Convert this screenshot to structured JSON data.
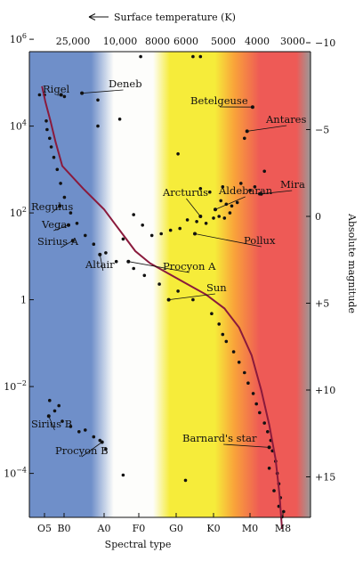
{
  "chart_data": {
    "type": "scatter",
    "title": "",
    "top_axis_label": "Surface temperature (K)",
    "top_ticks": [
      "25,000",
      "10,000",
      "8000",
      "6000",
      "5000",
      "4000",
      "3000"
    ],
    "xlabel": "Spectral type",
    "x_categories": [
      "O5",
      "B0",
      "A0",
      "F0",
      "G0",
      "K0",
      "M0",
      "M8"
    ],
    "left_ticks": [
      {
        "base": "10",
        "exp": "6",
        "value": 1000000
      },
      {
        "base": "10",
        "exp": "4",
        "value": 10000
      },
      {
        "base": "10",
        "exp": "2",
        "value": 100
      },
      {
        "base": "1",
        "exp": "",
        "value": 1
      },
      {
        "base": "10",
        "exp": "−2",
        "value": 0.01
      },
      {
        "base": "10",
        "exp": "−4",
        "value": 0.0001
      }
    ],
    "right_ylabel": "Absolute magnitude",
    "right_ticks": [
      "−10",
      "−5",
      "0",
      "+5",
      "+10",
      "+15"
    ],
    "right_ylim": [
      -11,
      18.5
    ],
    "main_sequence_curve": [
      [
        -0.2,
        -7.5
      ],
      [
        0,
        -6.6
      ],
      [
        0.3,
        -5.5
      ],
      [
        0.6,
        -4.3
      ],
      [
        1,
        -2.9
      ],
      [
        1.5,
        -1.6
      ],
      [
        2,
        -0.4
      ],
      [
        2.3,
        0.4
      ],
      [
        2.6,
        1.2
      ],
      [
        2.9,
        2
      ],
      [
        3.3,
        2.7
      ],
      [
        3.8,
        3.3
      ],
      [
        4.3,
        3.9
      ],
      [
        4.8,
        4.5
      ],
      [
        5.3,
        5.3
      ],
      [
        5.7,
        6.4
      ],
      [
        6.05,
        8
      ],
      [
        6.35,
        10
      ],
      [
        6.6,
        12
      ],
      [
        6.8,
        14
      ],
      [
        6.92,
        16
      ],
      [
        7,
        18
      ]
    ],
    "stars": [
      {
        "name": "Rigel",
        "x": 0.93,
        "y": -7.0
      },
      {
        "name": "Deneb",
        "x": 1.47,
        "y": -7.1
      },
      {
        "name": "Betelgeuse",
        "x": 6.08,
        "y": -6.3
      },
      {
        "name": "Antares",
        "x": 5.92,
        "y": -4.9
      },
      {
        "name": "Regulus",
        "x": 0.85,
        "y": -0.6
      },
      {
        "name": "Vega",
        "x": 1.15,
        "y": 0.5
      },
      {
        "name": "Sirius A",
        "x": 1.25,
        "y": 1.4
      },
      {
        "name": "Altair",
        "x": 1.9,
        "y": 2.2
      },
      {
        "name": "Procyon A",
        "x": 2.7,
        "y": 2.6
      },
      {
        "name": "Sun",
        "x": 3.8,
        "y": 4.8
      },
      {
        "name": "Arcturus",
        "x": 4.65,
        "y": 0.0
      },
      {
        "name": "Aldebaran",
        "x": 5.05,
        "y": -0.4
      },
      {
        "name": "Pollux",
        "x": 4.5,
        "y": 1.0
      },
      {
        "name": "Mira",
        "x": 6.35,
        "y": -1.3
      },
      {
        "name": "Sirius B",
        "x": 0.2,
        "y": 11.5
      },
      {
        "name": "Procyon B",
        "x": 1.95,
        "y": 13.0
      },
      {
        "name": "Barnard's star",
        "x": 6.6,
        "y": 13.3
      }
    ],
    "points": [
      [
        -0.35,
        -7.0
      ],
      [
        -0.05,
        -7.0
      ],
      [
        1.05,
        -6.9
      ],
      [
        1.85,
        -6.7
      ],
      [
        2.45,
        -5.6
      ],
      [
        1.85,
        -5.2
      ],
      [
        3.05,
        -9.2
      ],
      [
        4.65,
        -9.2
      ],
      [
        4.45,
        -9.2
      ],
      [
        4.05,
        -3.6
      ],
      [
        5.85,
        -4.5
      ],
      [
        6.45,
        -2.6
      ],
      [
        5.75,
        -1.9
      ],
      [
        6.0,
        -1.5
      ],
      [
        5.25,
        -1.7
      ],
      [
        4.65,
        -1.6
      ],
      [
        4.9,
        -1.4
      ],
      [
        5.2,
        -0.9
      ],
      [
        5.35,
        -0.7
      ],
      [
        5.5,
        -0.6
      ],
      [
        5.65,
        -0.8
      ],
      [
        5.45,
        -0.2
      ],
      [
        5.3,
        0.1
      ],
      [
        5.15,
        0.0
      ],
      [
        5.0,
        0.1
      ],
      [
        4.8,
        0.4
      ],
      [
        4.55,
        0.3
      ],
      [
        4.3,
        0.2
      ],
      [
        4.1,
        0.7
      ],
      [
        3.85,
        0.8
      ],
      [
        3.6,
        1.0
      ],
      [
        3.35,
        1.1
      ],
      [
        3.1,
        0.5
      ],
      [
        2.55,
        1.3
      ],
      [
        2.85,
        -0.1
      ],
      [
        6.15,
        -1.7
      ],
      [
        6.3,
        -1.3
      ],
      [
        0.05,
        -5.5
      ],
      [
        0.1,
        -5.0
      ],
      [
        0.25,
        -4.5
      ],
      [
        0.35,
        -4.0
      ],
      [
        0.5,
        -3.4
      ],
      [
        0.7,
        -2.7
      ],
      [
        0.9,
        -1.9
      ],
      [
        1.05,
        -1.1
      ],
      [
        1.2,
        -0.2
      ],
      [
        1.35,
        0.4
      ],
      [
        1.55,
        1.1
      ],
      [
        1.75,
        1.6
      ],
      [
        2.05,
        2.1
      ],
      [
        2.35,
        2.6
      ],
      [
        2.85,
        3.0
      ],
      [
        3.15,
        3.4
      ],
      [
        3.55,
        3.9
      ],
      [
        4.05,
        4.3
      ],
      [
        4.45,
        4.8
      ],
      [
        4.95,
        5.6
      ],
      [
        5.15,
        6.2
      ],
      [
        5.25,
        6.8
      ],
      [
        5.35,
        7.2
      ],
      [
        5.55,
        7.8
      ],
      [
        5.7,
        8.4
      ],
      [
        5.85,
        9.0
      ],
      [
        5.95,
        9.6
      ],
      [
        6.1,
        10.2
      ],
      [
        6.2,
        10.8
      ],
      [
        6.3,
        11.3
      ],
      [
        6.45,
        11.9
      ],
      [
        6.55,
        12.4
      ],
      [
        6.65,
        12.9
      ],
      [
        6.7,
        13.5
      ],
      [
        6.8,
        14.1
      ],
      [
        6.85,
        14.8
      ],
      [
        6.9,
        15.4
      ],
      [
        6.95,
        16.2
      ],
      [
        6.9,
        16.7
      ],
      [
        7.0,
        17.3
      ],
      [
        7.05,
        17.0
      ],
      [
        6.6,
        14.5
      ],
      [
        6.75,
        15.8
      ],
      [
        0.25,
        10.6
      ],
      [
        0.55,
        11.2
      ],
      [
        0.8,
        10.9
      ],
      [
        1.0,
        11.8
      ],
      [
        1.2,
        12.1
      ],
      [
        1.4,
        12.4
      ],
      [
        1.55,
        12.3
      ],
      [
        1.75,
        12.7
      ],
      [
        1.9,
        12.9
      ],
      [
        2.05,
        13.4
      ],
      [
        2.55,
        14.9
      ],
      [
        4.25,
        15.2
      ]
    ],
    "colors": {
      "blue": "#6f8fc9",
      "white": "#fdfdfb",
      "yellow": "#f6ec3a",
      "orange": "#f9a23a",
      "red": "#ee5a56",
      "grey": "#9a9a9a",
      "curve": "#8a1a3c"
    }
  }
}
